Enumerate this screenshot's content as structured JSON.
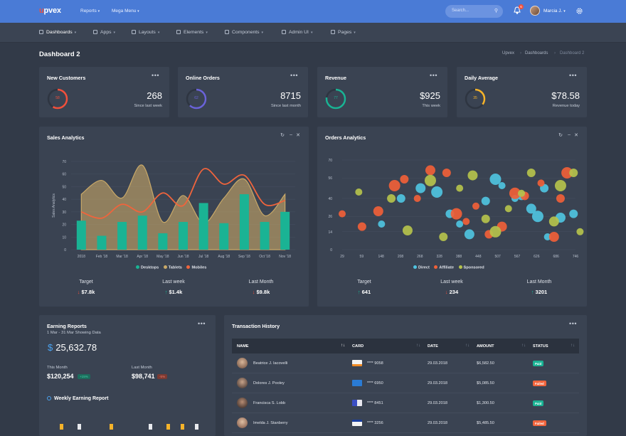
{
  "brand": {
    "logo_mark": "u",
    "logo_rest": "pvex"
  },
  "topnav": {
    "reports": "Reports",
    "mega_menu": "Mega Menu",
    "search_placeholder": "Search...",
    "notif_count": "6",
    "user_name": "Marcia J."
  },
  "mainnav": [
    {
      "label": "Dashboards",
      "icon": "dashboard-icon"
    },
    {
      "label": "Apps",
      "icon": "apps-icon"
    },
    {
      "label": "Layouts",
      "icon": "layouts-icon"
    },
    {
      "label": "Elements",
      "icon": "elements-icon"
    },
    {
      "label": "Components",
      "icon": "components-icon"
    },
    {
      "label": "Admin UI",
      "icon": "admin-icon"
    },
    {
      "label": "Pages",
      "icon": "pages-icon"
    }
  ],
  "page": {
    "title": "Dashboard 2",
    "breadcrumb": [
      "Upvex",
      "Dashboards",
      "Dashboard 2"
    ]
  },
  "kpis": [
    {
      "title": "New Customers",
      "ring_value": "58",
      "ring_percent": 58,
      "color": "#f0503c",
      "value": "268",
      "sub": "Since last week"
    },
    {
      "title": "Online Orders",
      "ring_value": "62",
      "ring_percent": 62,
      "color": "#6a63d8",
      "value": "8715",
      "sub": "Since last month"
    },
    {
      "title": "Revenue",
      "ring_value": "77",
      "ring_percent": 77,
      "color": "#1ab394",
      "value": "$925",
      "sub": "This week"
    },
    {
      "title": "Daily Average",
      "ring_value": "35",
      "ring_percent": 35,
      "color": "#f5b32a",
      "value": "$78.58",
      "sub": "Revenue today"
    }
  ],
  "sales_analytics": {
    "title": "Sales Analytics",
    "stats": [
      {
        "label": "Target",
        "value": "$7.8k",
        "dir": "down"
      },
      {
        "label": "Last week",
        "value": "$1.4k",
        "dir": "up"
      },
      {
        "label": "Last Month",
        "value": "$9.8k",
        "dir": "down"
      }
    ]
  },
  "orders_analytics": {
    "title": "Orders Analytics",
    "stats": [
      {
        "label": "Target",
        "value": "641",
        "dir": "up"
      },
      {
        "label": "Last week",
        "value": "234",
        "dir": "down"
      },
      {
        "label": "Last Month",
        "value": "3201",
        "dir": "up"
      }
    ]
  },
  "chart_data": [
    {
      "type": "bar",
      "ylabel": "Sales Analytics",
      "ylim": [
        0,
        70
      ],
      "yticks": [
        "0",
        "10",
        "20",
        "30",
        "40",
        "50",
        "60",
        "70"
      ],
      "categories": [
        "2018",
        "Feb '18",
        "Mar '18",
        "Apr '18",
        "May '18",
        "Jun '18",
        "Jul '18",
        "Aug '18",
        "Sep '18",
        "Oct '18",
        "Nov '18"
      ],
      "series": [
        {
          "name": "Desktops",
          "kind": "bar",
          "color": "#1ab394",
          "values": [
            23,
            11,
            22,
            27,
            13,
            22,
            37,
            21,
            44,
            22,
            30
          ]
        },
        {
          "name": "Tablets",
          "kind": "area",
          "color": "#c9a968",
          "values": [
            44,
            55,
            41,
            67,
            22,
            43,
            21,
            41,
            56,
            27,
            44
          ]
        },
        {
          "name": "Mobiles",
          "kind": "line",
          "color": "#f0643c",
          "values": [
            30,
            25,
            36,
            30,
            45,
            35,
            64,
            52,
            59,
            36,
            39
          ]
        }
      ],
      "legend": "bottom"
    },
    {
      "type": "scatter",
      "ylim": [
        0,
        70
      ],
      "yticks": [
        "0",
        "14",
        "26",
        "40",
        "56",
        "70"
      ],
      "xticks": [
        "29",
        "59",
        "148",
        "208",
        "268",
        "328",
        "388",
        "448",
        "507",
        "567",
        "626",
        "686",
        "746"
      ],
      "series": [
        {
          "name": "Direct",
          "color": "#4fc3e0",
          "points": [
            [
              150,
              20
            ],
            [
              210,
              40
            ],
            [
              270,
              48
            ],
            [
              320,
              45
            ],
            [
              360,
              28
            ],
            [
              390,
              20
            ],
            [
              420,
              12
            ],
            [
              470,
              38
            ],
            [
              500,
              55
            ],
            [
              520,
              50
            ],
            [
              560,
              40
            ],
            [
              580,
              42
            ],
            [
              610,
              32
            ],
            [
              630,
              26
            ],
            [
              650,
              48
            ],
            [
              660,
              10
            ],
            [
              700,
              25
            ],
            [
              740,
              28
            ]
          ]
        },
        {
          "name": "Affiliate",
          "color": "#f06038",
          "points": [
            [
              29,
              28
            ],
            [
              90,
              18
            ],
            [
              140,
              30
            ],
            [
              190,
              50
            ],
            [
              220,
              55
            ],
            [
              260,
              40
            ],
            [
              300,
              62
            ],
            [
              350,
              60
            ],
            [
              380,
              28
            ],
            [
              410,
              22
            ],
            [
              440,
              34
            ],
            [
              480,
              12
            ],
            [
              520,
              18
            ],
            [
              560,
              44
            ],
            [
              590,
              42
            ],
            [
              640,
              52
            ],
            [
              680,
              10
            ],
            [
              700,
              40
            ],
            [
              720,
              60
            ]
          ]
        },
        {
          "name": "Sponsored",
          "color": "#b5c24c",
          "points": [
            [
              80,
              45
            ],
            [
              180,
              40
            ],
            [
              230,
              15
            ],
            [
              300,
              54
            ],
            [
              340,
              10
            ],
            [
              390,
              48
            ],
            [
              430,
              58
            ],
            [
              470,
              24
            ],
            [
              500,
              14
            ],
            [
              540,
              32
            ],
            [
              580,
              44
            ],
            [
              610,
              60
            ],
            [
              680,
              22
            ],
            [
              700,
              50
            ],
            [
              740,
              60
            ],
            [
              760,
              14
            ]
          ]
        }
      ],
      "legend": "bottom"
    }
  ],
  "earning": {
    "title": "Earning Reports",
    "subtitle": "1 Mar - 31 Mar Showing Data",
    "total": "25,632.78",
    "currency": "$",
    "this_month_label": "This Month",
    "this_month_value": "$120,254",
    "this_month_change": "+15%",
    "last_month_label": "Last Month",
    "last_month_value": "$98,741",
    "last_month_change": "-5%",
    "weekly_title": "Weekly Earning Report"
  },
  "transactions": {
    "title": "Transaction History",
    "columns": [
      "NAME",
      "CARD",
      "DATE",
      "AMOUNT",
      "STATUS"
    ],
    "rows": [
      {
        "name": "Beatrice J. Iacovelli",
        "card": "**** 9058",
        "card_type": "discover",
        "date": "29.03.2018",
        "amount": "$6,582.50",
        "status": "Paid"
      },
      {
        "name": "Dolores J. Pooley",
        "card": "**** 6950",
        "card_type": "amex",
        "date": "29.03.2018",
        "amount": "$5,085.50",
        "status": "Failed"
      },
      {
        "name": "Francisca S. Lobb",
        "card": "**** 8451",
        "card_type": "mastercard",
        "date": "29.03.2018",
        "amount": "$1,300.50",
        "status": "Paid"
      },
      {
        "name": "Imelda J. Stanberry",
        "card": "**** 3256",
        "card_type": "visa",
        "date": "29.03.2018",
        "amount": "$5,485.50",
        "status": "Failed"
      }
    ]
  },
  "colors": {
    "paid": "#1ab394",
    "failed": "#f0643c",
    "up": "#1ab394",
    "down": "#f0503c"
  }
}
